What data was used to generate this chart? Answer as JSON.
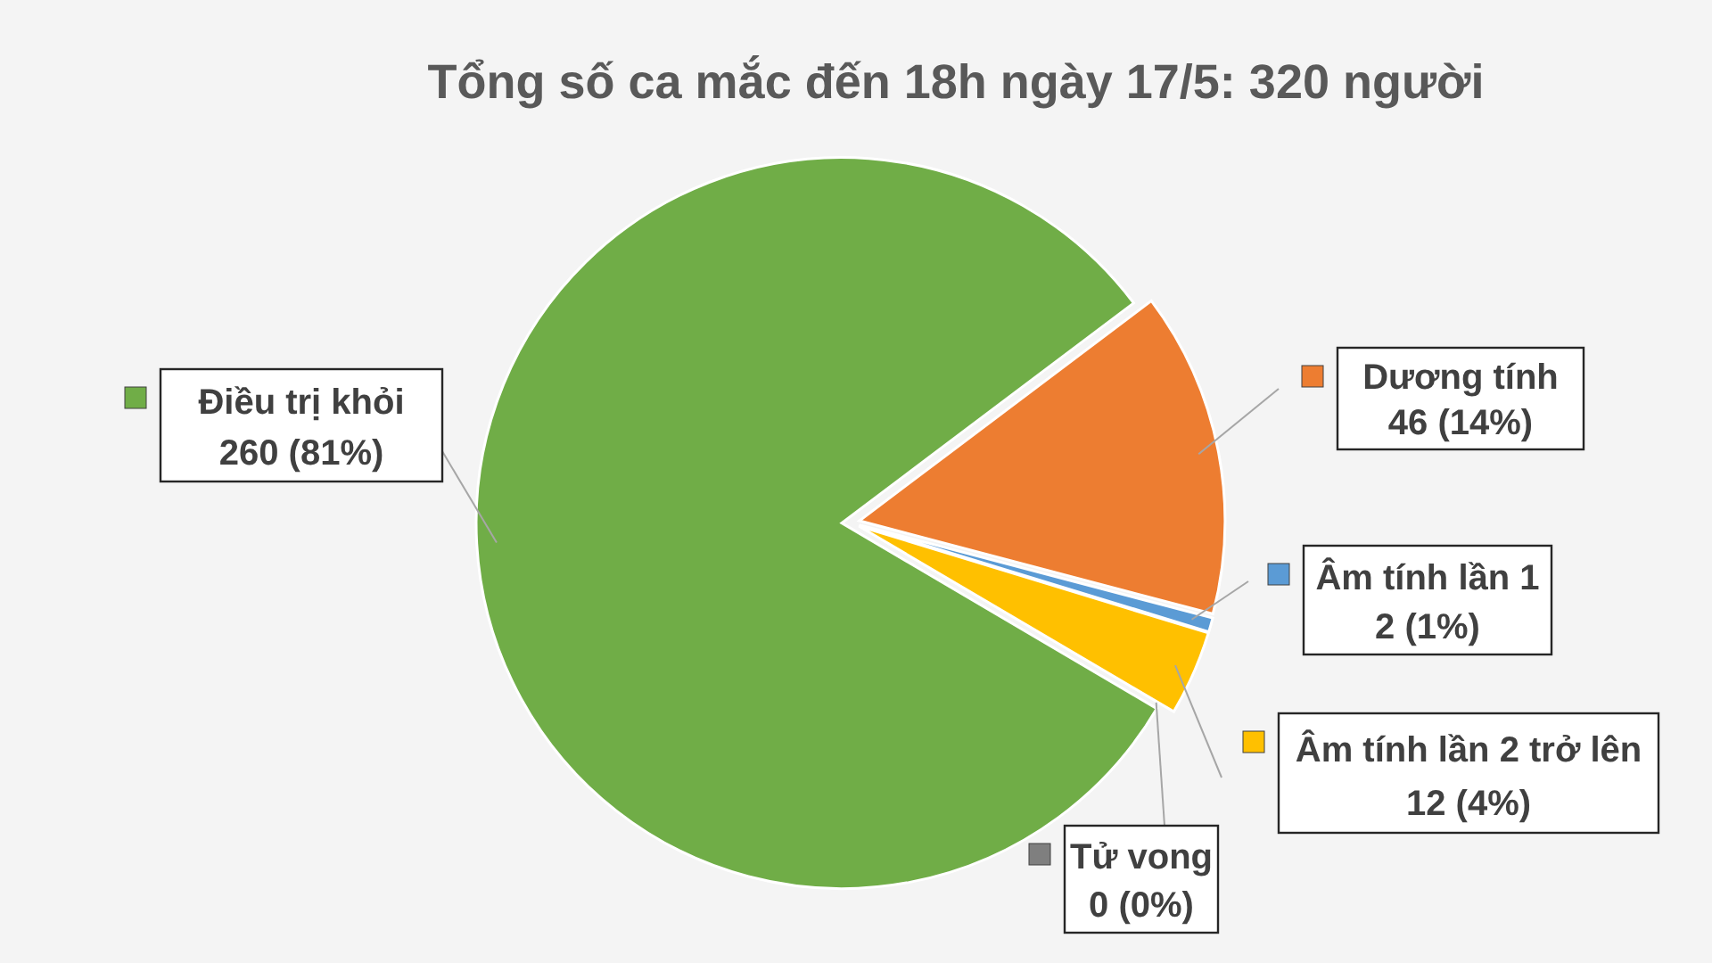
{
  "chart_data": {
    "type": "pie",
    "title": "Tổng số ca mắc đến 18h ngày 17/5: 320 người",
    "categories": [
      "Dương tính",
      "Âm tính lần 1",
      "Âm tính lần 2 trở lên",
      "Tử vong",
      "Điều trị khỏi"
    ],
    "values": [
      46,
      2,
      12,
      0,
      260
    ],
    "colors": [
      "#ed7d31",
      "#5b9bd5",
      "#ffc000",
      "#7f7f7f",
      "#70ad47"
    ],
    "value_labels": [
      "46 (14%)",
      "2 (1%)",
      "12 (4%)",
      "0 (0%)",
      "260 (81%)"
    ],
    "legend": "right"
  }
}
